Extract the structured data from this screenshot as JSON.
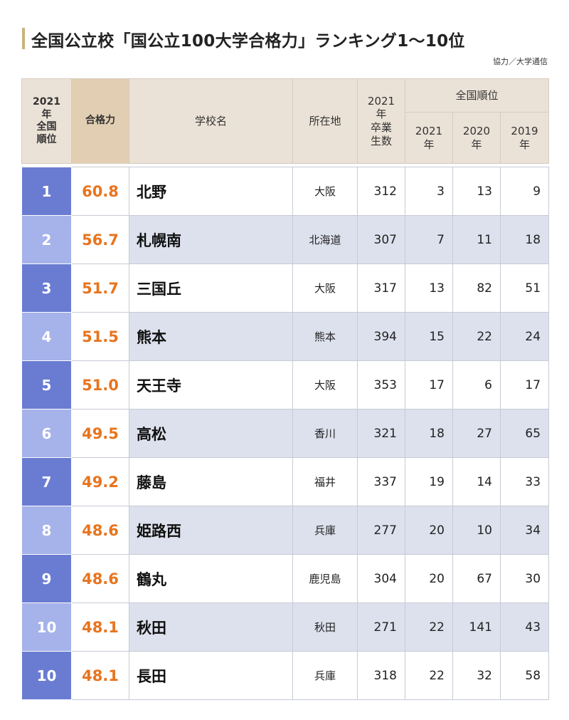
{
  "title": "全国公立校「国公立100大学合格力」ランキング1〜10位",
  "credit": "協力／大学通信",
  "headers": {
    "rank": "2021年全国順位",
    "rank_lines": [
      "2021",
      "年",
      "全国",
      "順位"
    ],
    "score": "合格力",
    "school": "学校名",
    "location": "所在地",
    "grads_lines": [
      "2021",
      "年",
      "卒業",
      "生数"
    ],
    "national_rank": "全国順位",
    "y2021_lines": [
      "2021",
      "年"
    ],
    "y2020_lines": [
      "2020",
      "年"
    ],
    "y2019_lines": [
      "2019",
      "年"
    ]
  },
  "rows": [
    {
      "rank": "1",
      "score": "60.8",
      "school": "北野",
      "location": "大阪",
      "graduates": "312",
      "r2021": "3",
      "r2020": "13",
      "r2019": "9"
    },
    {
      "rank": "2",
      "score": "56.7",
      "school": "札幌南",
      "location": "北海道",
      "graduates": "307",
      "r2021": "7",
      "r2020": "11",
      "r2019": "18"
    },
    {
      "rank": "3",
      "score": "51.7",
      "school": "三国丘",
      "location": "大阪",
      "graduates": "317",
      "r2021": "13",
      "r2020": "82",
      "r2019": "51"
    },
    {
      "rank": "4",
      "score": "51.5",
      "school": "熊本",
      "location": "熊本",
      "graduates": "394",
      "r2021": "15",
      "r2020": "22",
      "r2019": "24"
    },
    {
      "rank": "5",
      "score": "51.0",
      "school": "天王寺",
      "location": "大阪",
      "graduates": "353",
      "r2021": "17",
      "r2020": "6",
      "r2019": "17"
    },
    {
      "rank": "6",
      "score": "49.5",
      "school": "高松",
      "location": "香川",
      "graduates": "321",
      "r2021": "18",
      "r2020": "27",
      "r2019": "65"
    },
    {
      "rank": "7",
      "score": "49.2",
      "school": "藤島",
      "location": "福井",
      "graduates": "337",
      "r2021": "19",
      "r2020": "14",
      "r2019": "33"
    },
    {
      "rank": "8",
      "score": "48.6",
      "school": "姫路西",
      "location": "兵庫",
      "graduates": "277",
      "r2021": "20",
      "r2020": "10",
      "r2019": "34"
    },
    {
      "rank": "9",
      "score": "48.6",
      "school": "鶴丸",
      "location": "鹿児島",
      "graduates": "304",
      "r2021": "20",
      "r2020": "67",
      "r2019": "30"
    },
    {
      "rank": "10",
      "score": "48.1",
      "school": "秋田",
      "location": "秋田",
      "graduates": "271",
      "r2021": "22",
      "r2020": "141",
      "r2019": "43"
    },
    {
      "rank": "10",
      "score": "48.1",
      "school": "長田",
      "location": "兵庫",
      "graduates": "318",
      "r2021": "22",
      "r2020": "32",
      "r2019": "58"
    }
  ]
}
